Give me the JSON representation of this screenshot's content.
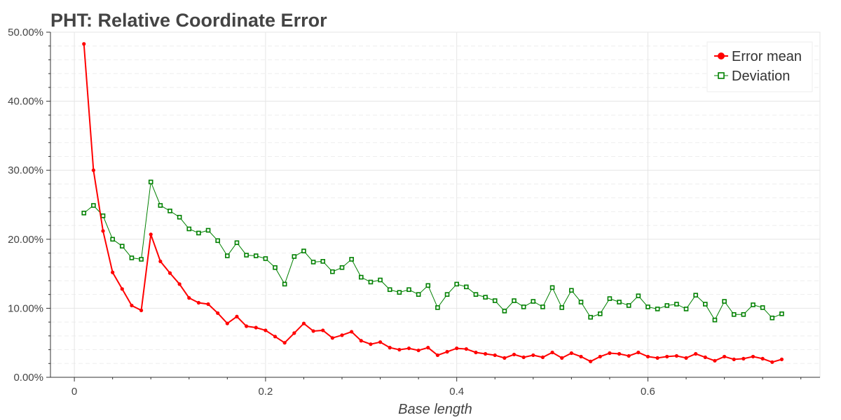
{
  "chart_data": {
    "type": "line",
    "title": "PHT: Relative Coordinate Error",
    "xlabel": "Base length",
    "ylabel": "",
    "xlim": [
      -0.025,
      0.78
    ],
    "ylim": [
      0,
      50
    ],
    "x_ticks": [
      0,
      0.2,
      0.4,
      0.6
    ],
    "x_tick_labels": [
      "0",
      "0.2",
      "0.4",
      "0.6"
    ],
    "y_ticks": [
      0,
      10,
      20,
      30,
      40,
      50
    ],
    "y_tick_labels": [
      "0.00%",
      "10.00%",
      "20.00%",
      "30.00%",
      "40.00%",
      "50.00%"
    ],
    "grid": true,
    "legend_position": "top-right",
    "x": [
      0.01,
      0.02,
      0.03,
      0.04,
      0.05,
      0.06,
      0.07,
      0.08,
      0.09,
      0.1,
      0.11,
      0.12,
      0.13,
      0.14,
      0.15,
      0.16,
      0.17,
      0.18,
      0.19,
      0.2,
      0.21,
      0.22,
      0.23,
      0.24,
      0.25,
      0.26,
      0.27,
      0.28,
      0.29,
      0.3,
      0.31,
      0.32,
      0.33,
      0.34,
      0.35,
      0.36,
      0.37,
      0.38,
      0.39,
      0.4,
      0.41,
      0.42,
      0.43,
      0.44,
      0.45,
      0.46,
      0.47,
      0.48,
      0.49,
      0.5,
      0.51,
      0.52,
      0.53,
      0.54,
      0.55,
      0.56,
      0.57,
      0.58,
      0.59,
      0.6,
      0.61,
      0.62,
      0.63,
      0.64,
      0.65,
      0.66,
      0.67,
      0.68,
      0.69,
      0.7,
      0.71,
      0.72,
      0.73,
      0.74
    ],
    "series": [
      {
        "name": "Error mean",
        "color": "#ff0000",
        "marker": "circle",
        "values": [
          48.3,
          30.0,
          21.2,
          15.2,
          12.8,
          10.4,
          9.7,
          20.7,
          16.8,
          15.1,
          13.5,
          11.5,
          10.8,
          10.6,
          9.3,
          7.8,
          8.8,
          7.4,
          7.2,
          6.8,
          5.9,
          5.0,
          6.4,
          7.8,
          6.7,
          6.8,
          5.7,
          6.1,
          6.6,
          5.3,
          4.8,
          5.1,
          4.3,
          4.0,
          4.2,
          3.9,
          4.3,
          3.2,
          3.7,
          4.2,
          4.1,
          3.6,
          3.4,
          3.2,
          2.8,
          3.3,
          2.9,
          3.2,
          2.9,
          3.6,
          2.8,
          3.5,
          3.0,
          2.3,
          3.0,
          3.5,
          3.4,
          3.1,
          3.6,
          3.0,
          2.8,
          3.0,
          3.1,
          2.8,
          3.4,
          2.9,
          2.4,
          3.0,
          2.6,
          2.7,
          3.0,
          2.7,
          2.2,
          2.6
        ]
      },
      {
        "name": "Deviation",
        "color": "#008000",
        "marker": "square",
        "values": [
          23.8,
          24.9,
          23.4,
          20.0,
          19.0,
          17.3,
          17.1,
          28.3,
          24.9,
          24.1,
          23.2,
          21.5,
          20.9,
          21.3,
          19.8,
          17.6,
          19.5,
          17.7,
          17.6,
          17.2,
          15.9,
          13.5,
          17.5,
          18.3,
          16.7,
          16.8,
          15.3,
          15.9,
          17.1,
          14.5,
          13.8,
          14.1,
          12.7,
          12.3,
          12.7,
          12.0,
          13.3,
          10.1,
          12.0,
          13.5,
          13.1,
          12.0,
          11.6,
          11.1,
          9.6,
          11.1,
          10.2,
          11.0,
          10.2,
          13.0,
          10.1,
          12.6,
          10.9,
          8.7,
          9.2,
          11.4,
          10.9,
          10.4,
          11.8,
          10.2,
          9.9,
          10.4,
          10.6,
          9.9,
          11.9,
          10.6,
          8.3,
          11.0,
          9.1,
          9.1,
          10.5,
          10.1,
          8.6,
          9.2
        ]
      }
    ]
  }
}
